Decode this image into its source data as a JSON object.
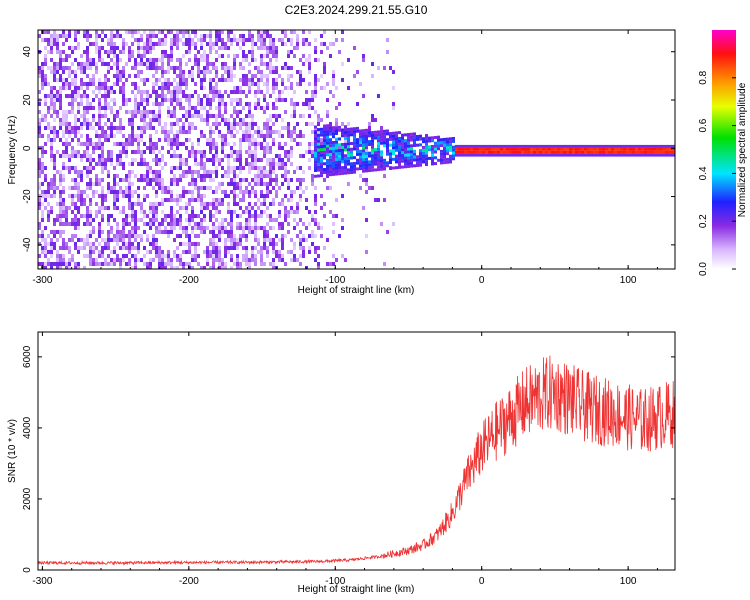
{
  "chart_data": [
    {
      "type": "heatmap",
      "title": "C2E3.2024.299.21.55.G10",
      "xlabel": "Height of straight line (km)",
      "ylabel": "Frequency (Hz)",
      "xlim": [
        -303,
        132
      ],
      "ylim": [
        -50,
        49
      ],
      "xticks": [
        -300,
        -200,
        -100,
        0,
        100
      ],
      "yticks": [
        -40,
        -20,
        0,
        20,
        40
      ],
      "colorbar": {
        "label": "Normalized spectral amplitude",
        "range": [
          0.0,
          1.0
        ],
        "ticks": [
          "0.0",
          "0.2",
          "0.4",
          "0.6",
          "0.8"
        ],
        "colormap": "rainbow (white-purple-blue-cyan-green-yellow-orange-red-magenta)"
      },
      "description_of_features": {
        "noise_region_x": [
          -303,
          -90
        ],
        "concentrated_band_center_hz": 0,
        "band_start_x": -115,
        "high_amplitude_start_x": -20
      }
    },
    {
      "type": "line",
      "xlabel": "Height of straight line (km)",
      "ylabel": "SNR (10 * v/v)",
      "xlim": [
        -303,
        132
      ],
      "ylim": [
        0,
        6700
      ],
      "xticks": [
        -300,
        -200,
        -100,
        0,
        100
      ],
      "yticks": [
        0,
        2000,
        4000,
        6000
      ],
      "color": "#ee3333",
      "series": [
        {
          "x": [
            -300,
            -250,
            -200,
            -150,
            -110,
            -90,
            -70,
            -50,
            -40,
            -30,
            -20,
            -10,
            0,
            10,
            20,
            30,
            40,
            50,
            60,
            70,
            80,
            90,
            100,
            110,
            120,
            130
          ],
          "values": [
            200,
            200,
            210,
            220,
            240,
            280,
            380,
            550,
            700,
            1000,
            1600,
            2600,
            3400,
            3900,
            4300,
            4700,
            4900,
            5000,
            4800,
            4600,
            4500,
            4400,
            4300,
            4200,
            4300,
            4400
          ]
        }
      ]
    }
  ]
}
